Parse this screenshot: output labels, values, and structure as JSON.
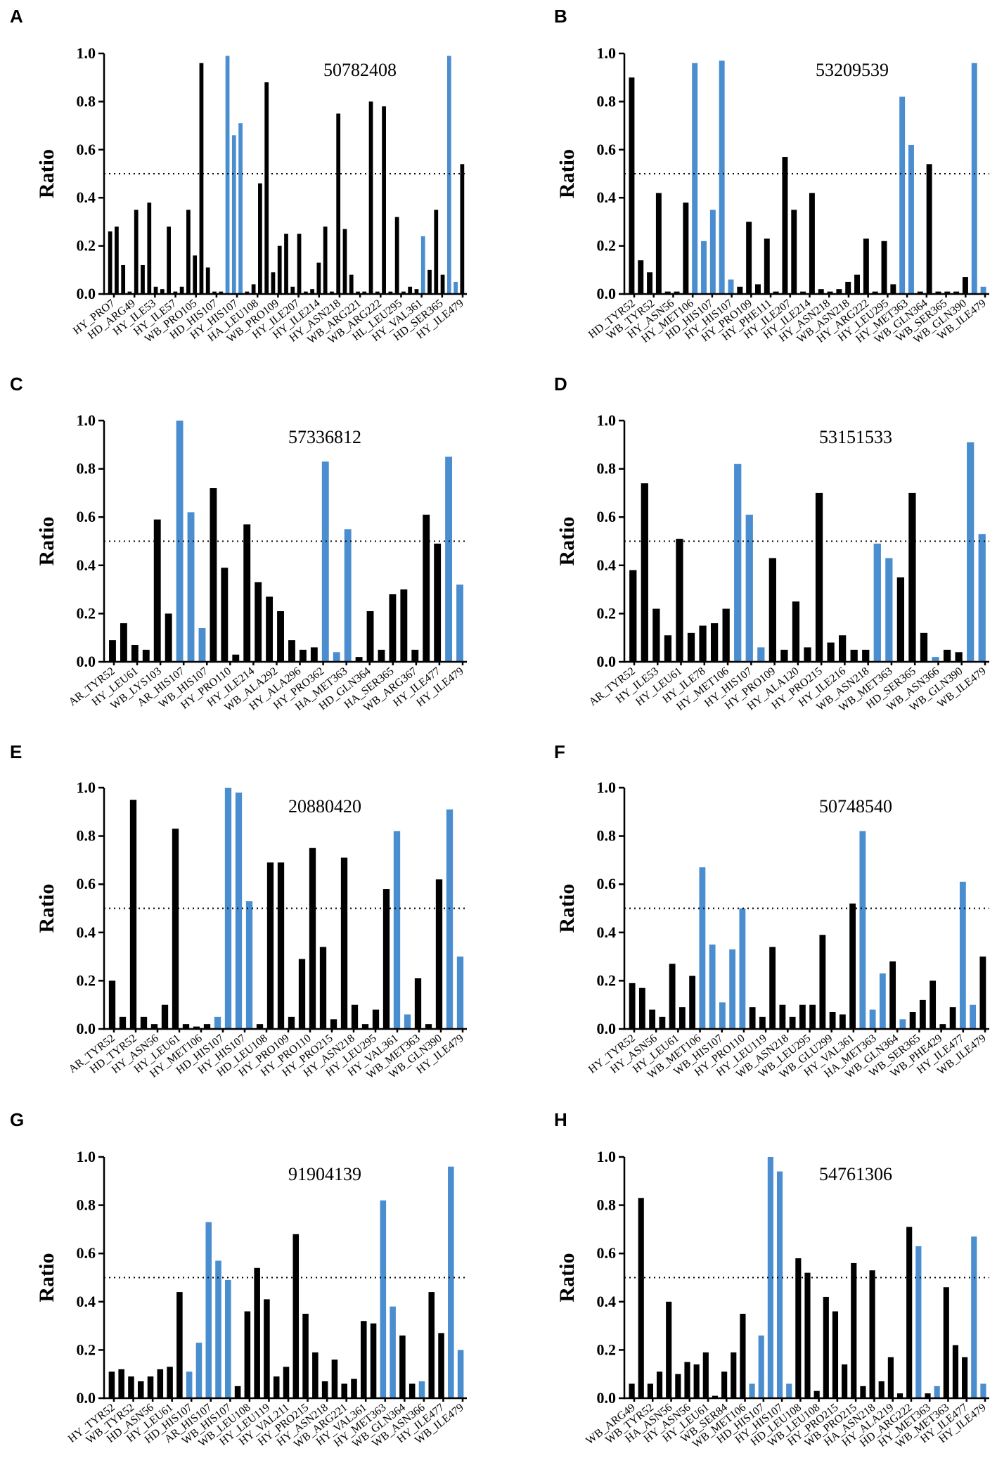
{
  "colors": {
    "black": "#000000",
    "blue": "#4a8ed0"
  },
  "chart_data": [
    {
      "panel": "A",
      "type": "bar",
      "id_label": "50782408",
      "ylabel": "Ratio",
      "ylim": [
        0,
        1.0
      ],
      "yticks": [
        "0.0",
        "0.2",
        "0.4",
        "0.6",
        "0.8",
        "1.0"
      ],
      "reference_line": 0.5,
      "tick_labels": [
        "HY_PRO7",
        "HD_ARG49",
        "HY_ILE53",
        "HY_ILE57",
        "WB_PRO105",
        "HD_HIS107",
        "HY_HIS107",
        "HA_LEU108",
        "WB_PRO109",
        "HY_ILE207",
        "HY_ILE214",
        "HY_ASN218",
        "WB_ARG221",
        "WB_ARG222",
        "HL_LEU295",
        "HY_VAL361",
        "HD_SER365",
        "HY_ILE479"
      ],
      "values": [
        0.26,
        0.28,
        0.12,
        0.01,
        0.35,
        0.12,
        0.38,
        0.03,
        0.02,
        0.28,
        0.01,
        0.03,
        0.35,
        0.16,
        0.96,
        0.11,
        0.01,
        0.01,
        0.99,
        0.66,
        0.71,
        0.01,
        0.04,
        0.46,
        0.88,
        0.09,
        0.2,
        0.25,
        0.03,
        0.25,
        0.01,
        0.02,
        0.13,
        0.28,
        0.01,
        0.75,
        0.27,
        0.08,
        0.01,
        0.01,
        0.8,
        0.01,
        0.78,
        0.01,
        0.32,
        0.01,
        0.03,
        0.02,
        0.24,
        0.1,
        0.35,
        0.08,
        0.99,
        0.05,
        0.54
      ],
      "highlight": [
        18,
        19,
        20,
        48,
        52,
        53
      ]
    },
    {
      "panel": "B",
      "type": "bar",
      "id_label": "53209539",
      "ylabel": "Ratio",
      "ylim": [
        0,
        1.0
      ],
      "yticks": [
        "0.0",
        "0.2",
        "0.4",
        "0.6",
        "0.8",
        "1.0"
      ],
      "reference_line": 0.5,
      "tick_labels": [
        "HD_TYR52",
        "WB_TYR52",
        "HY_ASN56",
        "HY_MET106",
        "HD_HIS107",
        "HY_HIS107",
        "HY_PRO109",
        "HY_PHE111",
        "HY_ILE207",
        "HY_ILE214",
        "HY_ASN218",
        "WB_ASN218",
        "HY_ARG222",
        "HY_LEU295",
        "HY_MET363",
        "WB_GLN364",
        "WB_SER365",
        "WB_GLN390",
        "WB_ILE479"
      ],
      "values": [
        0.9,
        0.14,
        0.09,
        0.42,
        0.01,
        0.01,
        0.38,
        0.96,
        0.22,
        0.35,
        0.97,
        0.06,
        0.03,
        0.3,
        0.04,
        0.23,
        0.01,
        0.57,
        0.35,
        0.01,
        0.42,
        0.02,
        0.01,
        0.02,
        0.05,
        0.08,
        0.23,
        0.01,
        0.22,
        0.04,
        0.82,
        0.62,
        0.01,
        0.54,
        0.01,
        0.01,
        0.01,
        0.07,
        0.96,
        0.03
      ],
      "highlight": [
        7,
        8,
        9,
        10,
        11,
        30,
        31,
        38,
        39
      ]
    },
    {
      "panel": "C",
      "type": "bar",
      "id_label": "57336812",
      "ylabel": "Ratio",
      "ylim": [
        0,
        1.0
      ],
      "yticks": [
        "0.0",
        "0.2",
        "0.4",
        "0.6",
        "0.8",
        "1.0"
      ],
      "reference_line": 0.5,
      "tick_labels": [
        "AR_TYR52",
        "HY_LEU61",
        "WB_LYS103",
        "AR_HIS107",
        "WB_HIS107",
        "HY_PRO110",
        "HY_ILE214",
        "WB_ALA292",
        "HY_ALA296",
        "HY_PRO362",
        "HA_MET363",
        "HD_GLN364",
        "HA_SER365",
        "WB_ARG367",
        "HY_ILE477",
        "HY_ILE479"
      ],
      "values": [
        0.09,
        0.16,
        0.07,
        0.05,
        0.59,
        0.2,
        1.0,
        0.62,
        0.14,
        0.72,
        0.39,
        0.03,
        0.57,
        0.33,
        0.27,
        0.21,
        0.09,
        0.05,
        0.06,
        0.83,
        0.04,
        0.55,
        0.02,
        0.21,
        0.05,
        0.28,
        0.3,
        0.05,
        0.61,
        0.49,
        0.85,
        0.32
      ],
      "highlight": [
        6,
        7,
        8,
        19,
        20,
        21,
        30,
        31
      ]
    },
    {
      "panel": "D",
      "type": "bar",
      "id_label": "53151533",
      "ylabel": "Ratio",
      "ylim": [
        0,
        1.0
      ],
      "yticks": [
        "0.0",
        "0.2",
        "0.4",
        "0.6",
        "0.8",
        "1.0"
      ],
      "reference_line": 0.5,
      "tick_labels": [
        "AR_TYR52",
        "HY_ILE53",
        "HY_LEU61",
        "HY_ILE78",
        "HY_MET106",
        "HY_HIS107",
        "HY_PRO109",
        "HY_ALA120",
        "HY_PRO215",
        "HY_ILE216",
        "WB_ASN218",
        "WB_MET363",
        "HD_SER365",
        "WB_ASN366",
        "WB_GLN390",
        "WB_ILE479"
      ],
      "values": [
        0.38,
        0.74,
        0.22,
        0.11,
        0.51,
        0.12,
        0.15,
        0.16,
        0.22,
        0.82,
        0.61,
        0.06,
        0.43,
        0.05,
        0.25,
        0.06,
        0.7,
        0.08,
        0.11,
        0.05,
        0.05,
        0.49,
        0.43,
        0.35,
        0.7,
        0.12,
        0.02,
        0.05,
        0.04,
        0.91,
        0.53
      ],
      "highlight": [
        9,
        10,
        11,
        21,
        22,
        26,
        29,
        30
      ]
    },
    {
      "panel": "E",
      "type": "bar",
      "id_label": "20880420",
      "ylabel": "Ratio",
      "ylim": [
        0,
        1.0
      ],
      "yticks": [
        "0.0",
        "0.2",
        "0.4",
        "0.6",
        "0.8",
        "1.0"
      ],
      "reference_line": 0.5,
      "tick_labels": [
        "AR_TYR52",
        "HD_TYR52",
        "HY_ASN56",
        "HY_LEU61",
        "HY_MET106",
        "HD_HIS107",
        "HY_HIS107",
        "HD_LEU108",
        "HY_PRO109",
        "HY_PRO110",
        "HY_PRO215",
        "HY_ASN218",
        "HY_LEU295",
        "HY_VAL361",
        "WB_MET363",
        "WB_GLN390",
        "HY_ILE479"
      ],
      "values": [
        0.2,
        0.05,
        0.95,
        0.05,
        0.02,
        0.1,
        0.83,
        0.02,
        0.01,
        0.02,
        0.05,
        1.0,
        0.98,
        0.53,
        0.02,
        0.69,
        0.69,
        0.05,
        0.29,
        0.75,
        0.34,
        0.04,
        0.71,
        0.1,
        0.02,
        0.08,
        0.58,
        0.82,
        0.06,
        0.21,
        0.02,
        0.62,
        0.91,
        0.3
      ],
      "highlight": [
        10,
        11,
        12,
        13,
        27,
        28,
        32,
        33
      ]
    },
    {
      "panel": "F",
      "type": "bar",
      "id_label": "50748540",
      "ylabel": "Ratio",
      "ylim": [
        0,
        1.0
      ],
      "yticks": [
        "0.0",
        "0.2",
        "0.4",
        "0.6",
        "0.8",
        "1.0"
      ],
      "reference_line": 0.5,
      "tick_labels": [
        "HY_TYR52",
        "HY_ASN56",
        "HY_LEU61",
        "WB_MET106",
        "WB_HIS107",
        "HY_PRO110",
        "HY_LEU119",
        "WB_ASN218",
        "WB_LEU295",
        "WB_GLU299",
        "HY_VAL361",
        "HA_MET363",
        "WB_GLN364",
        "WB_SER365",
        "WB_PHE429",
        "HY_ILE477",
        "WB_ILE479"
      ],
      "values": [
        0.19,
        0.17,
        0.08,
        0.05,
        0.27,
        0.09,
        0.22,
        0.67,
        0.35,
        0.11,
        0.33,
        0.5,
        0.09,
        0.05,
        0.34,
        0.1,
        0.05,
        0.1,
        0.1,
        0.39,
        0.07,
        0.06,
        0.52,
        0.82,
        0.08,
        0.23,
        0.28,
        0.04,
        0.07,
        0.12,
        0.2,
        0.02,
        0.09,
        0.61,
        0.1,
        0.3
      ],
      "highlight": [
        7,
        8,
        9,
        10,
        11,
        23,
        24,
        25,
        27,
        33,
        34
      ]
    },
    {
      "panel": "G",
      "type": "bar",
      "id_label": "91904139",
      "ylabel": "Ratio",
      "ylim": [
        0,
        1.0
      ],
      "yticks": [
        "0.0",
        "0.2",
        "0.4",
        "0.6",
        "0.8",
        "1.0"
      ],
      "reference_line": 0.5,
      "tick_labels": [
        "HY_TYR52",
        "WB_TYR52",
        "HD_ASN56",
        "HY_LEU61",
        "HD_HIS107",
        "AR_HIS107",
        "WB_HIS107",
        "WB_LEU108",
        "HY_LEU119",
        "HY_VAL211",
        "HY_PRO215",
        "HY_ASN218",
        "WB_ARG221",
        "HY_VAL361",
        "HY_MET363",
        "WB_GLN364",
        "WB_ASN366",
        "HY_ILE477",
        "WB_ILE479"
      ],
      "values": [
        0.11,
        0.12,
        0.09,
        0.07,
        0.09,
        0.12,
        0.13,
        0.44,
        0.11,
        0.23,
        0.73,
        0.57,
        0.49,
        0.05,
        0.36,
        0.54,
        0.41,
        0.09,
        0.13,
        0.68,
        0.35,
        0.19,
        0.07,
        0.16,
        0.06,
        0.08,
        0.32,
        0.31,
        0.82,
        0.38,
        0.26,
        0.06,
        0.07,
        0.44,
        0.27,
        0.96,
        0.2
      ],
      "highlight": [
        8,
        9,
        10,
        11,
        12,
        28,
        29,
        32,
        35,
        36
      ]
    },
    {
      "panel": "H",
      "type": "bar",
      "id_label": "54761306",
      "ylabel": "Ratio",
      "ylim": [
        0,
        1.0
      ],
      "yticks": [
        "0.0",
        "0.2",
        "0.4",
        "0.6",
        "0.8",
        "1.0"
      ],
      "reference_line": 0.5,
      "tick_labels": [
        "WB_ARG49",
        "WB_TYR52",
        "HA_ASN56",
        "HY_ASN56",
        "HY_LEU61",
        "WB_SER84",
        "WB_MET106",
        "HD_HIS107",
        "HY_HIS107",
        "HD_LEU108",
        "WB_LEU108",
        "HY_PRO215",
        "WB_PRO215",
        "HA_ASN218",
        "HY_ALA219",
        "HD_ARG222",
        "HY_MET363",
        "WB_MET363",
        "HY_ILE477",
        "HY_ILE479"
      ],
      "values": [
        0.06,
        0.83,
        0.06,
        0.11,
        0.4,
        0.1,
        0.15,
        0.14,
        0.19,
        0.01,
        0.11,
        0.19,
        0.35,
        0.06,
        0.26,
        1.0,
        0.94,
        0.06,
        0.58,
        0.52,
        0.03,
        0.42,
        0.36,
        0.14,
        0.56,
        0.05,
        0.53,
        0.07,
        0.17,
        0.02,
        0.71,
        0.63,
        0.02,
        0.05,
        0.46,
        0.22,
        0.17,
        0.67,
        0.06
      ],
      "highlight": [
        13,
        14,
        15,
        16,
        17,
        31,
        33,
        37,
        38
      ]
    }
  ]
}
